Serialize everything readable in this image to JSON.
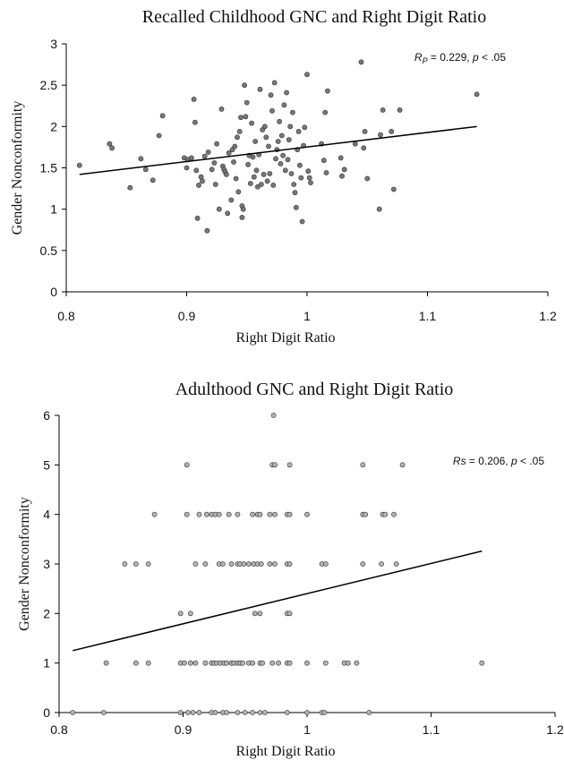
{
  "chart_data": [
    {
      "type": "scatter",
      "title": "Recalled Childhood GNC and Right Digit Ratio",
      "xlabel": "Right Digit Ratio",
      "ylabel": "Gender Nonconformity",
      "xlim": [
        0.8,
        1.2
      ],
      "ylim": [
        0,
        3
      ],
      "xticks": [
        "0.8",
        "0.9",
        "1",
        "1.1",
        "1.2"
      ],
      "yticks": [
        "0",
        "0.5",
        "1",
        "1.5",
        "2",
        "2.5",
        "3"
      ],
      "grid": false,
      "marker_color": "#777777",
      "annotation": {
        "symbol": "R",
        "subscript": "P",
        "rest": " = 0.229, ",
        "p_label": "p",
        "p_rest": " < .05"
      },
      "trendline": {
        "x": [
          0.811,
          1.141
        ],
        "y": [
          1.42,
          2.0
        ]
      },
      "series": [
        {
          "points": [
            [
              0.811,
              1.53
            ],
            [
              0.836,
              1.79
            ],
            [
              0.838,
              1.74
            ],
            [
              0.853,
              1.26
            ],
            [
              0.862,
              1.61
            ],
            [
              0.866,
              1.48
            ],
            [
              0.872,
              1.35
            ],
            [
              0.877,
              1.89
            ],
            [
              0.88,
              2.13
            ],
            [
              0.898,
              1.62
            ],
            [
              0.9,
              1.5
            ],
            [
              0.901,
              1.6
            ],
            [
              0.904,
              1.62
            ],
            [
              0.906,
              2.33
            ],
            [
              0.907,
              2.05
            ],
            [
              0.908,
              1.47
            ],
            [
              0.909,
              0.89
            ],
            [
              0.91,
              1.29
            ],
            [
              0.912,
              1.39
            ],
            [
              0.913,
              1.34
            ],
            [
              0.915,
              1.64
            ],
            [
              0.917,
              0.74
            ],
            [
              0.918,
              1.69
            ],
            [
              0.921,
              1.48
            ],
            [
              0.923,
              1.56
            ],
            [
              0.924,
              1.3
            ],
            [
              0.925,
              1.79
            ],
            [
              0.927,
              1.0
            ],
            [
              0.929,
              2.21
            ],
            [
              0.93,
              1.52
            ],
            [
              0.931,
              1.48
            ],
            [
              0.932,
              1.45
            ],
            [
              0.933,
              1.42
            ],
            [
              0.934,
              0.95
            ],
            [
              0.935,
              1.68
            ],
            [
              0.937,
              1.11
            ],
            [
              0.938,
              1.72
            ],
            [
              0.939,
              1.57
            ],
            [
              0.94,
              1.76
            ],
            [
              0.941,
              1.37
            ],
            [
              0.942,
              1.87
            ],
            [
              0.943,
              1.21
            ],
            [
              0.944,
              1.94
            ],
            [
              0.945,
              2.11
            ],
            [
              0.946,
              1.04
            ],
            [
              0.946,
              0.9
            ],
            [
              0.947,
              1.0
            ],
            [
              0.948,
              2.5
            ],
            [
              0.949,
              2.12
            ],
            [
              0.95,
              2.29
            ],
            [
              0.951,
              1.54
            ],
            [
              0.952,
              1.65
            ],
            [
              0.953,
              1.31
            ],
            [
              0.954,
              2.04
            ],
            [
              0.955,
              1.63
            ],
            [
              0.956,
              1.39
            ],
            [
              0.957,
              1.82
            ],
            [
              0.958,
              1.47
            ],
            [
              0.959,
              1.27
            ],
            [
              0.96,
              1.66
            ],
            [
              0.961,
              2.45
            ],
            [
              0.962,
              1.3
            ],
            [
              0.963,
              1.96
            ],
            [
              0.964,
              1.42
            ],
            [
              0.965,
              2.0
            ],
            [
              0.966,
              1.87
            ],
            [
              0.967,
              1.34
            ],
            [
              0.968,
              1.76
            ],
            [
              0.969,
              1.43
            ],
            [
              0.97,
              2.38
            ],
            [
              0.971,
              2.19
            ],
            [
              0.972,
              1.29
            ],
            [
              0.973,
              2.53
            ],
            [
              0.974,
              1.61
            ],
            [
              0.975,
              1.72
            ],
            [
              0.976,
              1.82
            ],
            [
              0.977,
              2.06
            ],
            [
              0.978,
              1.55
            ],
            [
              0.979,
              1.89
            ],
            [
              0.98,
              1.65
            ],
            [
              0.981,
              2.26
            ],
            [
              0.982,
              1.47
            ],
            [
              0.983,
              2.41
            ],
            [
              0.984,
              1.6
            ],
            [
              0.985,
              1.84
            ],
            [
              0.986,
              2.0
            ],
            [
              0.987,
              1.43
            ],
            [
              0.988,
              2.17
            ],
            [
              0.989,
              1.3
            ],
            [
              0.99,
              1.2
            ],
            [
              0.991,
              1.02
            ],
            [
              0.992,
              1.72
            ],
            [
              0.993,
              1.94
            ],
            [
              0.994,
              1.53
            ],
            [
              0.995,
              1.38
            ],
            [
              0.996,
              0.85
            ],
            [
              0.997,
              1.77
            ],
            [
              0.998,
              1.99
            ],
            [
              1.0,
              2.63
            ],
            [
              1.001,
              1.46
            ],
            [
              1.002,
              1.38
            ],
            [
              1.003,
              1.32
            ],
            [
              1.012,
              1.79
            ],
            [
              1.014,
              1.59
            ],
            [
              1.015,
              2.17
            ],
            [
              1.016,
              1.44
            ],
            [
              1.017,
              2.43
            ],
            [
              1.028,
              1.62
            ],
            [
              1.029,
              1.4
            ],
            [
              1.031,
              1.48
            ],
            [
              1.04,
              1.79
            ],
            [
              1.045,
              2.78
            ],
            [
              1.047,
              1.74
            ],
            [
              1.048,
              1.94
            ],
            [
              1.05,
              1.37
            ],
            [
              1.06,
              1.0
            ],
            [
              1.061,
              1.9
            ],
            [
              1.063,
              2.2
            ],
            [
              1.07,
              1.94
            ],
            [
              1.072,
              1.24
            ],
            [
              1.077,
              2.2
            ],
            [
              1.141,
              2.39
            ]
          ]
        }
      ]
    },
    {
      "type": "scatter",
      "title": "Adulthood GNC and Right Digit Ratio",
      "xlabel": "Right Digit Ratio",
      "ylabel": "Gender Nonconformity",
      "xlim": [
        0.8,
        1.2
      ],
      "ylim": [
        0,
        6
      ],
      "xticks": [
        "0.8",
        "0.9",
        "1",
        "1.1",
        "1.2"
      ],
      "yticks": [
        "0",
        "1",
        "2",
        "3",
        "4",
        "5",
        "6"
      ],
      "grid": false,
      "marker_color": "#b3b3b3",
      "annotation": {
        "symbol": "Rs",
        "subscript": "",
        "rest": " = 0.206, ",
        "p_label": "p",
        "p_rest": " < .05"
      },
      "trendline": {
        "x": [
          0.811,
          1.141
        ],
        "y": [
          1.25,
          3.26
        ]
      },
      "series": [
        {
          "points": [
            [
              0.811,
              0
            ],
            [
              0.836,
              0
            ],
            [
              0.898,
              0
            ],
            [
              0.904,
              0
            ],
            [
              0.908,
              0
            ],
            [
              0.913,
              0
            ],
            [
              0.923,
              0
            ],
            [
              0.926,
              0
            ],
            [
              0.932,
              0
            ],
            [
              0.935,
              0
            ],
            [
              0.944,
              0
            ],
            [
              0.95,
              0
            ],
            [
              0.956,
              0
            ],
            [
              0.962,
              0
            ],
            [
              0.966,
              0
            ],
            [
              0.984,
              0
            ],
            [
              1.0,
              0
            ],
            [
              1.012,
              0
            ],
            [
              1.014,
              0
            ],
            [
              1.05,
              0
            ],
            [
              0.838,
              1
            ],
            [
              0.862,
              1
            ],
            [
              0.872,
              1
            ],
            [
              0.898,
              1
            ],
            [
              0.901,
              1
            ],
            [
              0.906,
              1
            ],
            [
              0.91,
              1
            ],
            [
              0.918,
              1
            ],
            [
              0.923,
              1
            ],
            [
              0.925,
              1
            ],
            [
              0.927,
              1
            ],
            [
              0.93,
              1
            ],
            [
              0.933,
              1
            ],
            [
              0.935,
              1
            ],
            [
              0.939,
              1
            ],
            [
              0.941,
              1
            ],
            [
              0.944,
              1
            ],
            [
              0.946,
              1
            ],
            [
              0.948,
              1
            ],
            [
              0.953,
              1
            ],
            [
              0.956,
              1
            ],
            [
              0.962,
              1
            ],
            [
              0.964,
              1
            ],
            [
              0.972,
              1
            ],
            [
              0.977,
              1
            ],
            [
              0.984,
              1
            ],
            [
              0.986,
              1
            ],
            [
              1.0,
              1
            ],
            [
              1.015,
              1
            ],
            [
              1.03,
              1
            ],
            [
              1.033,
              1
            ],
            [
              1.04,
              1
            ],
            [
              1.141,
              1
            ],
            [
              0.898,
              2
            ],
            [
              0.906,
              2
            ],
            [
              0.958,
              2
            ],
            [
              0.962,
              2
            ],
            [
              0.984,
              2
            ],
            [
              0.986,
              2
            ],
            [
              0.853,
              3
            ],
            [
              0.862,
              3
            ],
            [
              0.872,
              3
            ],
            [
              0.91,
              3
            ],
            [
              0.918,
              3
            ],
            [
              0.929,
              3
            ],
            [
              0.932,
              3
            ],
            [
              0.939,
              3
            ],
            [
              0.944,
              3
            ],
            [
              0.946,
              3
            ],
            [
              0.949,
              3
            ],
            [
              0.953,
              3
            ],
            [
              0.957,
              3
            ],
            [
              0.96,
              3
            ],
            [
              0.963,
              3
            ],
            [
              0.97,
              3
            ],
            [
              0.974,
              3
            ],
            [
              0.984,
              3
            ],
            [
              0.986,
              3
            ],
            [
              1.012,
              3
            ],
            [
              1.015,
              3
            ],
            [
              1.045,
              3
            ],
            [
              1.06,
              3
            ],
            [
              1.072,
              3
            ],
            [
              0.877,
              4
            ],
            [
              0.903,
              4
            ],
            [
              0.913,
              4
            ],
            [
              0.919,
              4
            ],
            [
              0.923,
              4
            ],
            [
              0.926,
              4
            ],
            [
              0.929,
              4
            ],
            [
              0.937,
              4
            ],
            [
              0.944,
              4
            ],
            [
              0.956,
              4
            ],
            [
              0.96,
              4
            ],
            [
              0.962,
              4
            ],
            [
              0.97,
              4
            ],
            [
              0.974,
              4
            ],
            [
              0.984,
              4
            ],
            [
              0.986,
              4
            ],
            [
              1.0,
              4
            ],
            [
              1.045,
              4
            ],
            [
              1.047,
              4
            ],
            [
              1.061,
              4
            ],
            [
              1.063,
              4
            ],
            [
              1.07,
              4
            ],
            [
              0.903,
              5
            ],
            [
              0.972,
              5
            ],
            [
              0.974,
              5
            ],
            [
              0.986,
              5
            ],
            [
              1.045,
              5
            ],
            [
              1.077,
              5
            ],
            [
              0.973,
              6
            ]
          ]
        }
      ]
    }
  ]
}
